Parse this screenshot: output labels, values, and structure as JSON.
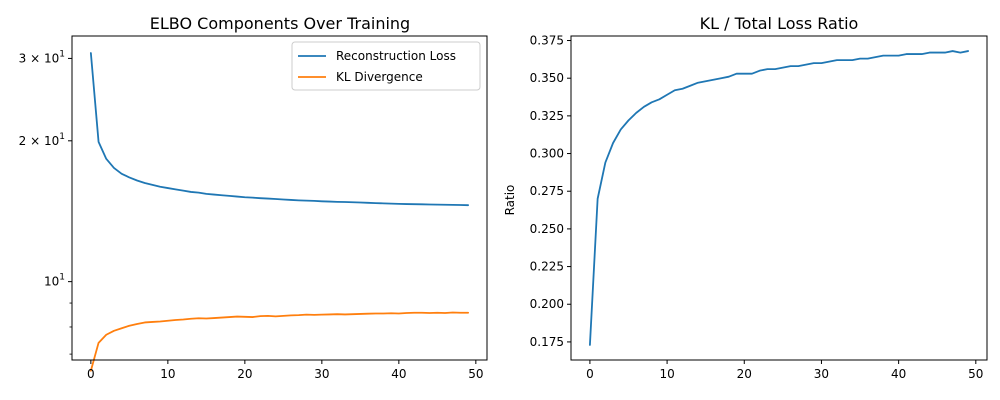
{
  "chart_data": [
    {
      "type": "line",
      "title": "ELBO Components Over Training",
      "xlabel": "",
      "ylabel": "",
      "yscale": "log",
      "xlim": [
        -2.45,
        51.45
      ],
      "ylim": [
        6.8,
        33.5
      ],
      "xticks": [
        0,
        10,
        20,
        30,
        40,
        50
      ],
      "xtick_labels": [
        "0",
        "10",
        "20",
        "30",
        "40",
        "50"
      ],
      "yticks_major": [
        10,
        20,
        30
      ],
      "ytick_labels": [
        "10",
        "2",
        "3"
      ],
      "ytick_label_parts": [
        {
          "base": "10",
          "exp": "1",
          "mult": ""
        },
        {
          "base": "10",
          "exp": "1",
          "mult": "2 × "
        },
        {
          "base": "10",
          "exp": "1",
          "mult": "3 × "
        }
      ],
      "yticks_minor": [
        7,
        8,
        9
      ],
      "grid": false,
      "legend_position": "upper right",
      "series": [
        {
          "name": "Reconstruction Loss",
          "color": "#1f77b4",
          "x": [
            0,
            1,
            2,
            3,
            4,
            5,
            6,
            7,
            8,
            9,
            10,
            11,
            12,
            13,
            14,
            15,
            16,
            17,
            18,
            19,
            20,
            21,
            22,
            23,
            24,
            25,
            26,
            27,
            28,
            29,
            30,
            31,
            32,
            33,
            34,
            35,
            36,
            37,
            38,
            39,
            40,
            41,
            42,
            43,
            44,
            45,
            46,
            47,
            48,
            49
          ],
          "values": [
            30.8,
            19.9,
            18.3,
            17.5,
            17.0,
            16.7,
            16.45,
            16.25,
            16.1,
            15.95,
            15.85,
            15.75,
            15.65,
            15.55,
            15.5,
            15.4,
            15.35,
            15.3,
            15.25,
            15.2,
            15.15,
            15.12,
            15.08,
            15.05,
            15.02,
            14.98,
            14.95,
            14.92,
            14.9,
            14.88,
            14.85,
            14.83,
            14.81,
            14.8,
            14.78,
            14.76,
            14.74,
            14.72,
            14.7,
            14.68,
            14.66,
            14.65,
            14.64,
            14.63,
            14.62,
            14.61,
            14.6,
            14.59,
            14.58,
            14.57
          ]
        },
        {
          "name": "KL Divergence",
          "color": "#ff7f0e",
          "x": [
            0,
            1,
            2,
            3,
            4,
            5,
            6,
            7,
            8,
            9,
            10,
            11,
            12,
            13,
            14,
            15,
            16,
            17,
            18,
            19,
            20,
            21,
            22,
            23,
            24,
            25,
            26,
            27,
            28,
            29,
            30,
            31,
            32,
            33,
            34,
            35,
            36,
            37,
            38,
            39,
            40,
            41,
            42,
            43,
            44,
            45,
            46,
            47,
            48,
            49
          ],
          "values": [
            6.45,
            7.4,
            7.7,
            7.85,
            7.95,
            8.05,
            8.12,
            8.18,
            8.2,
            8.22,
            8.25,
            8.28,
            8.3,
            8.33,
            8.35,
            8.34,
            8.36,
            8.38,
            8.4,
            8.42,
            8.41,
            8.4,
            8.44,
            8.45,
            8.43,
            8.45,
            8.47,
            8.48,
            8.5,
            8.49,
            8.5,
            8.51,
            8.52,
            8.51,
            8.52,
            8.53,
            8.54,
            8.55,
            8.55,
            8.56,
            8.55,
            8.57,
            8.58,
            8.58,
            8.57,
            8.58,
            8.57,
            8.59,
            8.58,
            8.58
          ]
        }
      ]
    },
    {
      "type": "line",
      "title": "KL / Total Loss Ratio",
      "xlabel": "",
      "ylabel": "Ratio",
      "xlim": [
        -2.45,
        51.45
      ],
      "ylim": [
        0.163,
        0.378
      ],
      "xticks": [
        0,
        10,
        20,
        30,
        40,
        50
      ],
      "xtick_labels": [
        "0",
        "10",
        "20",
        "30",
        "40",
        "50"
      ],
      "yticks": [
        0.175,
        0.2,
        0.225,
        0.25,
        0.275,
        0.3,
        0.325,
        0.35,
        0.375
      ],
      "ytick_labels": [
        "0.175",
        "0.200",
        "0.225",
        "0.250",
        "0.275",
        "0.300",
        "0.325",
        "0.350",
        "0.375"
      ],
      "grid": false,
      "series": [
        {
          "color": "#1f77b4",
          "x": [
            0,
            1,
            2,
            3,
            4,
            5,
            6,
            7,
            8,
            9,
            10,
            11,
            12,
            13,
            14,
            15,
            16,
            17,
            18,
            19,
            20,
            21,
            22,
            23,
            24,
            25,
            26,
            27,
            28,
            29,
            30,
            31,
            32,
            33,
            34,
            35,
            36,
            37,
            38,
            39,
            40,
            41,
            42,
            43,
            44,
            45,
            46,
            47,
            48,
            49
          ],
          "values": [
            0.173,
            0.27,
            0.294,
            0.307,
            0.316,
            0.322,
            0.327,
            0.331,
            0.334,
            0.336,
            0.339,
            0.342,
            0.343,
            0.345,
            0.347,
            0.348,
            0.349,
            0.35,
            0.351,
            0.353,
            0.353,
            0.353,
            0.355,
            0.356,
            0.356,
            0.357,
            0.358,
            0.358,
            0.359,
            0.36,
            0.36,
            0.361,
            0.362,
            0.362,
            0.362,
            0.363,
            0.363,
            0.364,
            0.365,
            0.365,
            0.365,
            0.366,
            0.366,
            0.366,
            0.367,
            0.367,
            0.367,
            0.368,
            0.367,
            0.368
          ]
        }
      ]
    }
  ]
}
